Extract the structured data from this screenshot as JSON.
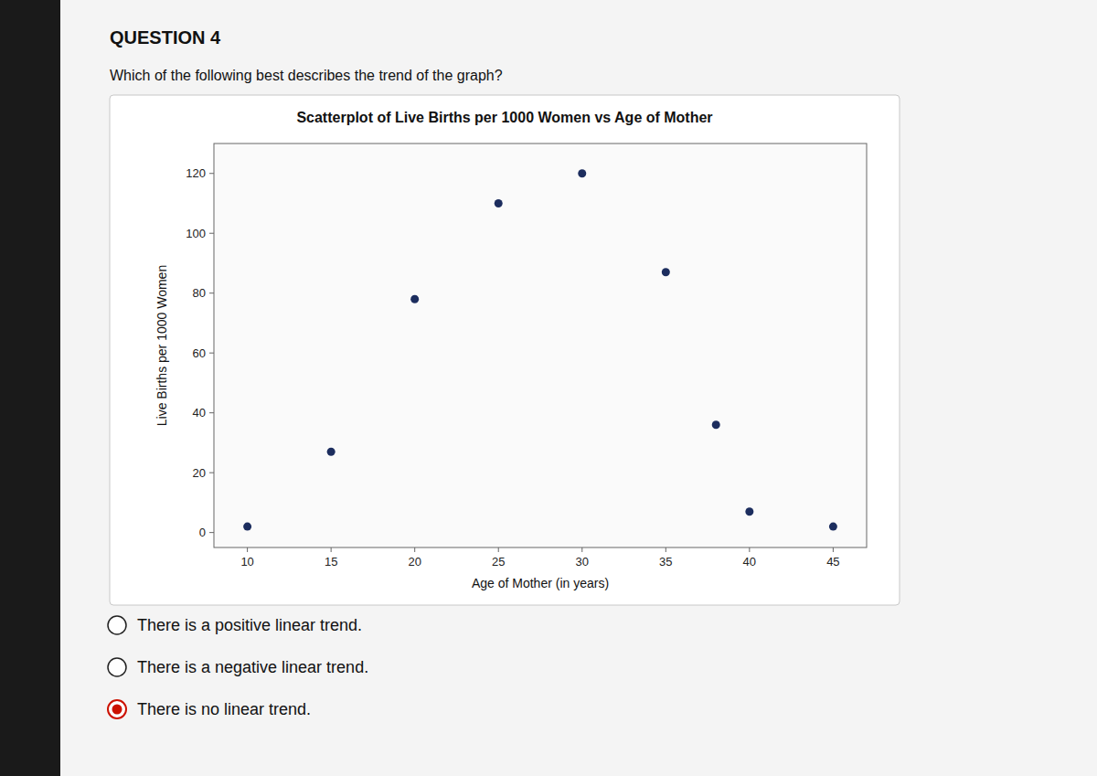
{
  "chart_data": {
    "type": "scatter",
    "title": "Scatterplot of Live Births per 1000 Women vs Age of Mother",
    "x_label": "Age of Mother (in years)",
    "y_label": "Live Births per 1000 Women",
    "x": [
      10,
      15,
      20,
      25,
      30,
      35,
      38,
      40,
      45
    ],
    "values": [
      2,
      27,
      78,
      110,
      120,
      87,
      36,
      7,
      2
    ],
    "color": "#1c2d5e",
    "xlim": [
      8,
      47
    ],
    "ylim": [
      -5,
      130
    ],
    "xticks": [
      10,
      15,
      20,
      25,
      30,
      35,
      40,
      45
    ],
    "yticks": [
      0,
      20,
      40,
      60,
      80,
      100,
      120
    ],
    "grid": false
  },
  "question": "QUESTION 4",
  "prompt": "Which of the following best describes the trend of the graph?",
  "options": [
    {
      "text": "There is a positive linear trend.",
      "selected": false
    },
    {
      "text": "There is a negative linear trend.",
      "selected": false
    },
    {
      "text": "There is no linear trend.",
      "selected": true
    }
  ]
}
